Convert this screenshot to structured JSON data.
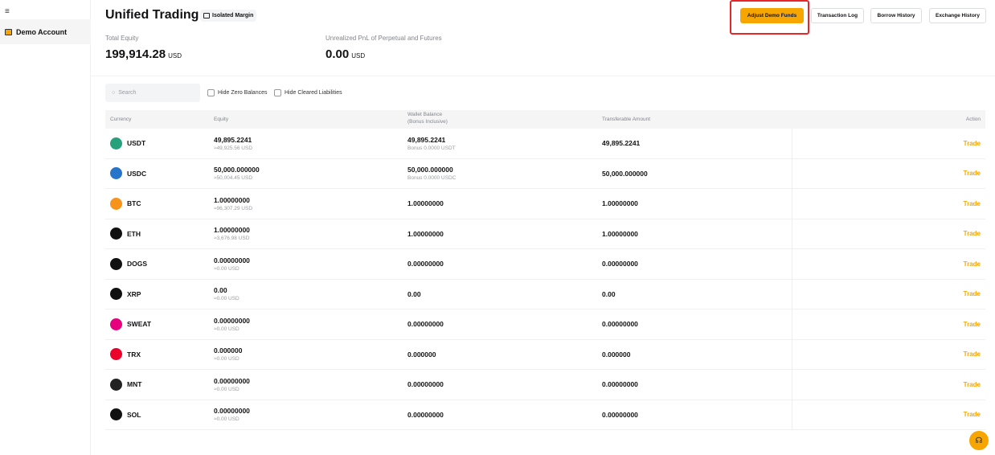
{
  "sidebar": {
    "menu_icon": "≡",
    "items": [
      {
        "label": "Demo Account"
      }
    ]
  },
  "header": {
    "title": "Unified Trading",
    "badge": "Isolated Margin",
    "buttons": {
      "adjust": "Adjust Demo Funds",
      "txlog": "Transaction Log",
      "borrow": "Borrow History",
      "exchange": "Exchange History"
    }
  },
  "summary": {
    "equity_label": "Total Equity",
    "equity_value": "199,914.28",
    "equity_unit": "USD",
    "pnl_label": "Unrealized PnL of Perpetual and Futures",
    "pnl_value": "0.00",
    "pnl_unit": "USD"
  },
  "filters": {
    "search_placeholder": "Search",
    "hide_zero": "Hide Zero Balances",
    "hide_cleared": "Hide Cleared Liabilities"
  },
  "table": {
    "headers": {
      "currency": "Currency",
      "equity": "Equity",
      "wallet1": "Wallet Balance",
      "wallet2": "(Bonus Inclusive)",
      "transferable": "Transferable Amount",
      "action": "Action"
    },
    "rows": [
      {
        "coin": "USDT",
        "color": "#26a17b",
        "equity": "49,895.2241",
        "equity_usd": "≈49,925.56 USD",
        "wallet": "49,895.2241",
        "bonus": "Bonus 0.0000 USDT",
        "transferable": "49,895.2241",
        "action": "Trade"
      },
      {
        "coin": "USDC",
        "color": "#2775ca",
        "equity": "50,000.000000",
        "equity_usd": "≈50,004.45 USD",
        "wallet": "50,000.000000",
        "bonus": "Bonus 0.0000 USDC",
        "transferable": "50,000.000000",
        "action": "Trade"
      },
      {
        "coin": "BTC",
        "color": "#f7931a",
        "equity": "1.00000000",
        "equity_usd": "≈96,307.29 USD",
        "wallet": "1.00000000",
        "bonus": "",
        "transferable": "1.00000000",
        "action": "Trade"
      },
      {
        "coin": "ETH",
        "color": "#111111",
        "equity": "1.00000000",
        "equity_usd": "≈3,676.98 USD",
        "wallet": "1.00000000",
        "bonus": "",
        "transferable": "1.00000000",
        "action": "Trade"
      },
      {
        "coin": "DOGS",
        "color": "#111111",
        "equity": "0.00000000",
        "equity_usd": "≈0.00 USD",
        "wallet": "0.00000000",
        "bonus": "",
        "transferable": "0.00000000",
        "action": "Trade"
      },
      {
        "coin": "XRP",
        "color": "#111111",
        "equity": "0.00",
        "equity_usd": "≈0.00 USD",
        "wallet": "0.00",
        "bonus": "",
        "transferable": "0.00",
        "action": "Trade"
      },
      {
        "coin": "SWEAT",
        "color": "#e6007e",
        "equity": "0.00000000",
        "equity_usd": "≈0.00 USD",
        "wallet": "0.00000000",
        "bonus": "",
        "transferable": "0.00000000",
        "action": "Trade"
      },
      {
        "coin": "TRX",
        "color": "#eb0029",
        "equity": "0.000000",
        "equity_usd": "≈0.00 USD",
        "wallet": "0.000000",
        "bonus": "",
        "transferable": "0.000000",
        "action": "Trade"
      },
      {
        "coin": "MNT",
        "color": "#222222",
        "equity": "0.00000000",
        "equity_usd": "≈0.00 USD",
        "wallet": "0.00000000",
        "bonus": "",
        "transferable": "0.00000000",
        "action": "Trade"
      },
      {
        "coin": "SOL",
        "color": "#111111",
        "equity": "0.00000000",
        "equity_usd": "≈0.00 USD",
        "wallet": "0.00000000",
        "bonus": "",
        "transferable": "0.00000000",
        "action": "Trade"
      }
    ]
  },
  "colors": {
    "accent": "#f7a600",
    "highlight": "#e8262a"
  }
}
